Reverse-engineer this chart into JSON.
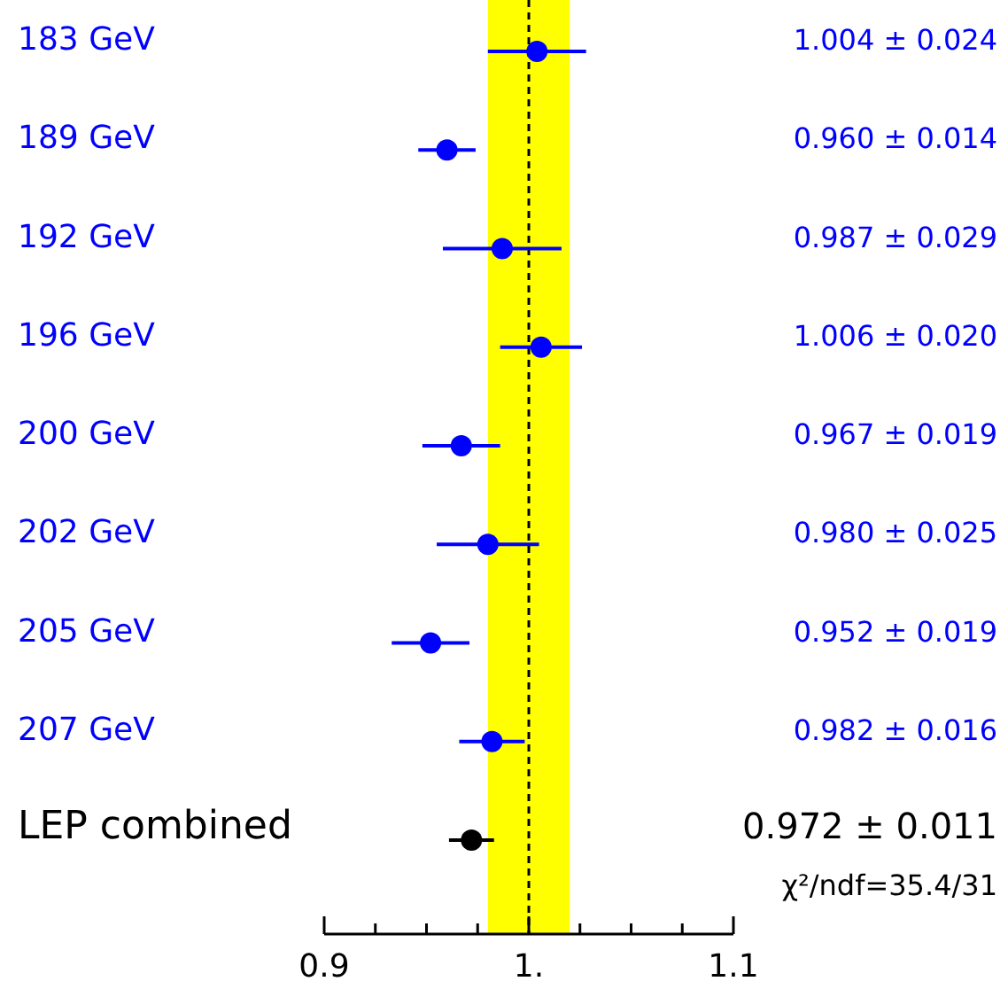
{
  "chart_data": {
    "type": "scatter",
    "orientation": "horizontal",
    "categories": [
      "183 GeV",
      "189 GeV",
      "192 GeV",
      "196 GeV",
      "200 GeV",
      "202 GeV",
      "205 GeV",
      "207 GeV",
      "LEP combined"
    ],
    "values": [
      1.004,
      0.96,
      0.987,
      1.006,
      0.967,
      0.98,
      0.952,
      0.982,
      0.972
    ],
    "errors": [
      0.024,
      0.014,
      0.029,
      0.02,
      0.019,
      0.025,
      0.019,
      0.016,
      0.011
    ],
    "value_labels": [
      "1.004 ± 0.024",
      "0.960 ± 0.014",
      "0.987 ± 0.029",
      "1.006 ± 0.020",
      "0.967 ± 0.019",
      "0.980 ± 0.025",
      "0.952 ± 0.019",
      "0.982 ± 0.016",
      "0.972 ± 0.011"
    ],
    "colors": [
      "#0000ff",
      "#0000ff",
      "#0000ff",
      "#0000ff",
      "#0000ff",
      "#0000ff",
      "#0000ff",
      "#0000ff",
      "#000000"
    ],
    "marker": "circle",
    "xlim": [
      0.9,
      1.1
    ],
    "xticks": [
      0.9,
      {
        "value": 0.925,
        "label": null
      },
      {
        "value": 0.95,
        "label": null
      },
      {
        "value": 0.975,
        "label": null
      },
      {
        "value": 1,
        "label": "1."
      },
      {
        "value": 1.025,
        "label": null
      },
      {
        "value": 1.05,
        "label": null
      },
      {
        "value": 1.075,
        "label": null
      },
      1.1
    ],
    "bands": [
      {
        "axis": "x",
        "from": 0.98,
        "to": 1.02,
        "color": "#ffff00"
      }
    ],
    "ref_lines": [
      {
        "axis": "x",
        "value": 1,
        "color": "#000000",
        "line_style": "dashed"
      }
    ],
    "annotations": [
      "χ²/ndf=35.4/31"
    ]
  }
}
